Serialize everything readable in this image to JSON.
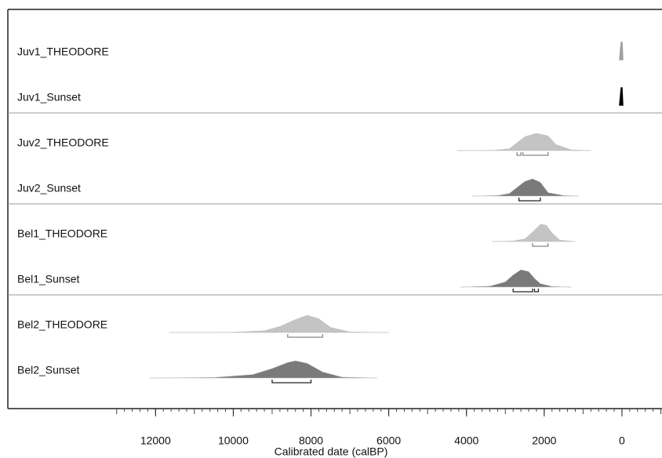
{
  "chart_data": {
    "type": "distribution",
    "xlabel": "Calibrated date (calBP)",
    "xlim": [
      15800,
      -1030
    ],
    "xticks": [
      12000,
      10000,
      8000,
      6000,
      4000,
      2000,
      0
    ],
    "series": [
      {
        "name": "Juv1_THEODORE",
        "color": "#a0a0a0",
        "x": [
          60,
          20,
          0,
          -20
        ],
        "density": [
          0,
          1,
          1,
          0
        ],
        "hpd": []
      },
      {
        "name": "Juv1_Sunset",
        "color": "#000000",
        "x": [
          60,
          20,
          0,
          -20
        ],
        "density": [
          0,
          1,
          1,
          0
        ],
        "hpd": []
      },
      {
        "name": "Juv2_THEODORE",
        "color": "#c4c4c4",
        "x": [
          4250,
          3300,
          2900,
          2700,
          2500,
          2200,
          1900,
          1700,
          1300,
          800
        ],
        "density": [
          0,
          0.02,
          0.1,
          0.45,
          0.8,
          1,
          0.85,
          0.35,
          0.04,
          0
        ],
        "hpd": [
          [
            2700,
            2600
          ],
          [
            2550,
            1900
          ]
        ]
      },
      {
        "name": "Juv2_Sunset",
        "color": "#7a7a7a",
        "x": [
          3850,
          3200,
          2900,
          2700,
          2500,
          2300,
          2100,
          1900,
          1500,
          1100
        ],
        "density": [
          0,
          0.03,
          0.15,
          0.5,
          0.85,
          1,
          0.8,
          0.2,
          0.03,
          0
        ],
        "hpd": [
          [
            2650,
            2100
          ]
        ]
      },
      {
        "name": "Bel1_THEODORE",
        "color": "#c4c4c4",
        "x": [
          3350,
          2800,
          2500,
          2300,
          2100,
          1950,
          1800,
          1600,
          1200
        ],
        "density": [
          0,
          0.03,
          0.15,
          0.55,
          1,
          0.95,
          0.5,
          0.08,
          0
        ],
        "hpd": [
          [
            2300,
            1900
          ]
        ]
      },
      {
        "name": "Bel1_Sunset",
        "color": "#7a7a7a",
        "x": [
          4150,
          3400,
          3000,
          2800,
          2600,
          2400,
          2250,
          2100,
          1800,
          1300
        ],
        "density": [
          0,
          0.05,
          0.3,
          0.7,
          1,
          0.9,
          0.5,
          0.2,
          0.03,
          0
        ],
        "hpd": [
          [
            2800,
            2300
          ],
          [
            2250,
            2150
          ]
        ]
      },
      {
        "name": "Bel2_THEODORE",
        "color": "#c4c4c4",
        "x": [
          11650,
          10000,
          9200,
          8800,
          8400,
          8100,
          7800,
          7500,
          7000,
          6000
        ],
        "density": [
          0,
          0.02,
          0.1,
          0.35,
          0.75,
          1,
          0.8,
          0.3,
          0.03,
          0
        ],
        "hpd": [
          [
            8600,
            7700
          ]
        ]
      },
      {
        "name": "Bel2_Sunset",
        "color": "#7a7a7a",
        "x": [
          12150,
          10500,
          9500,
          9000,
          8600,
          8400,
          8100,
          7700,
          7200,
          6300
        ],
        "density": [
          0,
          0.03,
          0.2,
          0.55,
          0.9,
          1,
          0.85,
          0.35,
          0.05,
          0
        ],
        "hpd": [
          [
            9000,
            8000
          ]
        ]
      }
    ]
  }
}
